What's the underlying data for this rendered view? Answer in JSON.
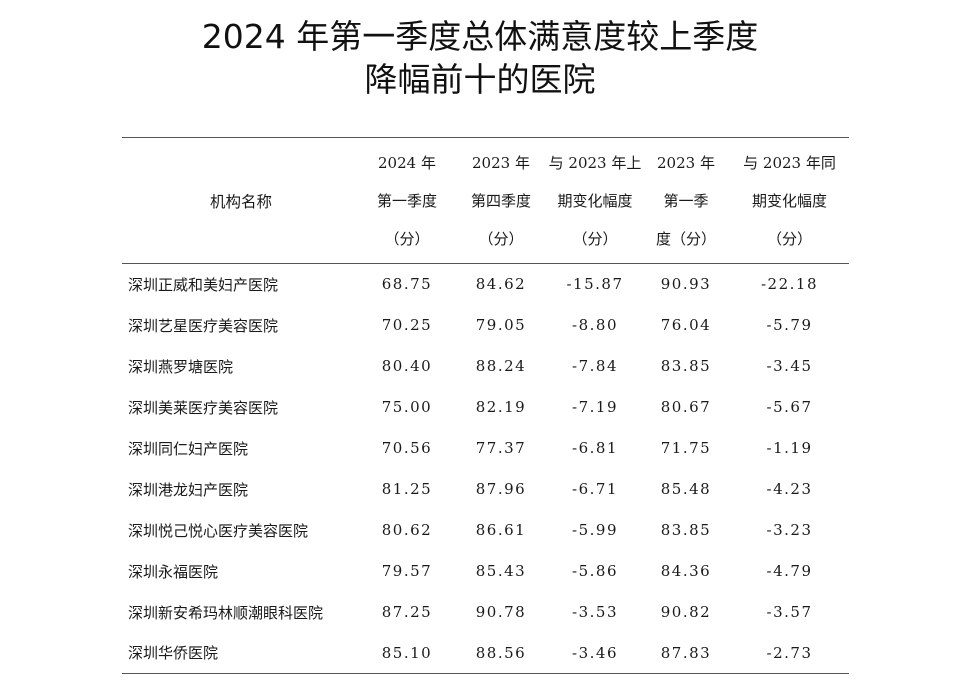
{
  "title_line1": "2024 年第一季度总体满意度较上季度",
  "title_line2": "降幅前十的医院",
  "table": {
    "headers": {
      "name": "机构名称",
      "q1_2024": [
        "2024 年",
        "第一季度",
        "（分）"
      ],
      "q4_2023": [
        "2023 年",
        "第四季度",
        "（分）"
      ],
      "change_prev": [
        "与 2023 年上",
        "期变化幅度",
        "（分）"
      ],
      "q1_2023": [
        "2023 年",
        "第一季",
        "度（分）"
      ],
      "change_yoy": [
        "与 2023 年同",
        "期变化幅度",
        "（分）"
      ]
    },
    "rows": [
      {
        "name": "深圳正威和美妇产医院",
        "q1_2024": "68.75",
        "q4_2023": "84.62",
        "change_prev": "-15.87",
        "q1_2023": "90.93",
        "change_yoy": "-22.18"
      },
      {
        "name": "深圳艺星医疗美容医院",
        "q1_2024": "70.25",
        "q4_2023": "79.05",
        "change_prev": "-8.80",
        "q1_2023": "76.04",
        "change_yoy": "-5.79"
      },
      {
        "name": "深圳燕罗塘医院",
        "q1_2024": "80.40",
        "q4_2023": "88.24",
        "change_prev": "-7.84",
        "q1_2023": "83.85",
        "change_yoy": "-3.45"
      },
      {
        "name": "深圳美莱医疗美容医院",
        "q1_2024": "75.00",
        "q4_2023": "82.19",
        "change_prev": "-7.19",
        "q1_2023": "80.67",
        "change_yoy": "-5.67"
      },
      {
        "name": "深圳同仁妇产医院",
        "q1_2024": "70.56",
        "q4_2023": "77.37",
        "change_prev": "-6.81",
        "q1_2023": "71.75",
        "change_yoy": "-1.19"
      },
      {
        "name": "深圳港龙妇产医院",
        "q1_2024": "81.25",
        "q4_2023": "87.96",
        "change_prev": "-6.71",
        "q1_2023": "85.48",
        "change_yoy": "-4.23"
      },
      {
        "name": "深圳悦己悦心医疗美容医院",
        "q1_2024": "80.62",
        "q4_2023": "86.61",
        "change_prev": "-5.99",
        "q1_2023": "83.85",
        "change_yoy": "-3.23"
      },
      {
        "name": "深圳永福医院",
        "q1_2024": "79.57",
        "q4_2023": "85.43",
        "change_prev": "-5.86",
        "q1_2023": "84.36",
        "change_yoy": "-4.79"
      },
      {
        "name": "深圳新安希玛林顺潮眼科医院",
        "q1_2024": "87.25",
        "q4_2023": "90.78",
        "change_prev": "-3.53",
        "q1_2023": "90.82",
        "change_yoy": "-3.57"
      },
      {
        "name": "深圳华侨医院",
        "q1_2024": "85.10",
        "q4_2023": "88.56",
        "change_prev": "-3.46",
        "q1_2023": "87.83",
        "change_yoy": "-2.73"
      }
    ]
  }
}
